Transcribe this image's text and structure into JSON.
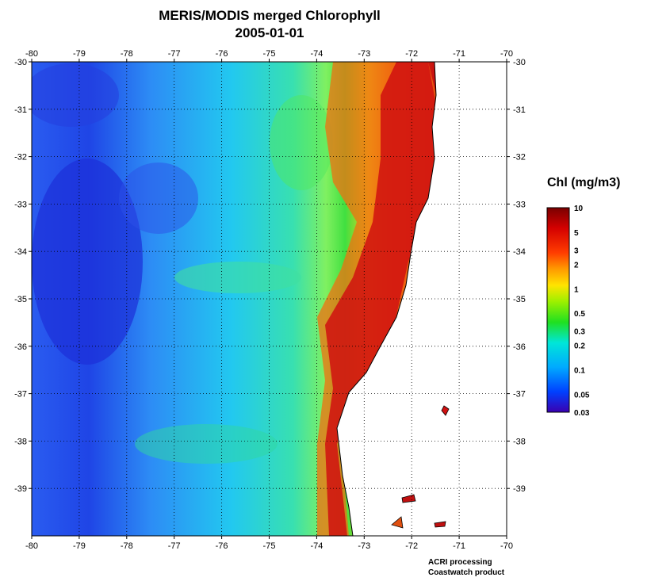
{
  "title": "MERIS/MODIS merged Chlorophyll",
  "date": "2005-01-01",
  "map": {
    "lon_range": [
      -80,
      -70
    ],
    "lat_range": [
      -40,
      -30
    ],
    "lon_ticks": [
      "-80",
      "-79",
      "-78",
      "-77",
      "-76",
      "-75",
      "-74",
      "-73",
      "-72",
      "-71",
      "-70"
    ],
    "lat_ticks": [
      "-30",
      "-31",
      "-32",
      "-33",
      "-34",
      "-35",
      "-36",
      "-37",
      "-38",
      "-39"
    ],
    "grid": "dotted",
    "land_color": "#ffffff",
    "coast_color": "#000000"
  },
  "legend": {
    "title": "Chl (mg/m3)",
    "scale": "log",
    "labels": [
      "10",
      "5",
      "3",
      "2",
      "1",
      "0.5",
      "0.3",
      "0.2",
      "0.1",
      "0.05",
      "0.03"
    ],
    "colors": [
      "#7a0000",
      "#d40000",
      "#ff3c00",
      "#ff9a00",
      "#ffe400",
      "#9cf000",
      "#20e020",
      "#00e6d8",
      "#00aaff",
      "#0040ff",
      "#3a00b0"
    ]
  },
  "credits": [
    "ACRI processing",
    "Coastwatch product"
  ]
}
